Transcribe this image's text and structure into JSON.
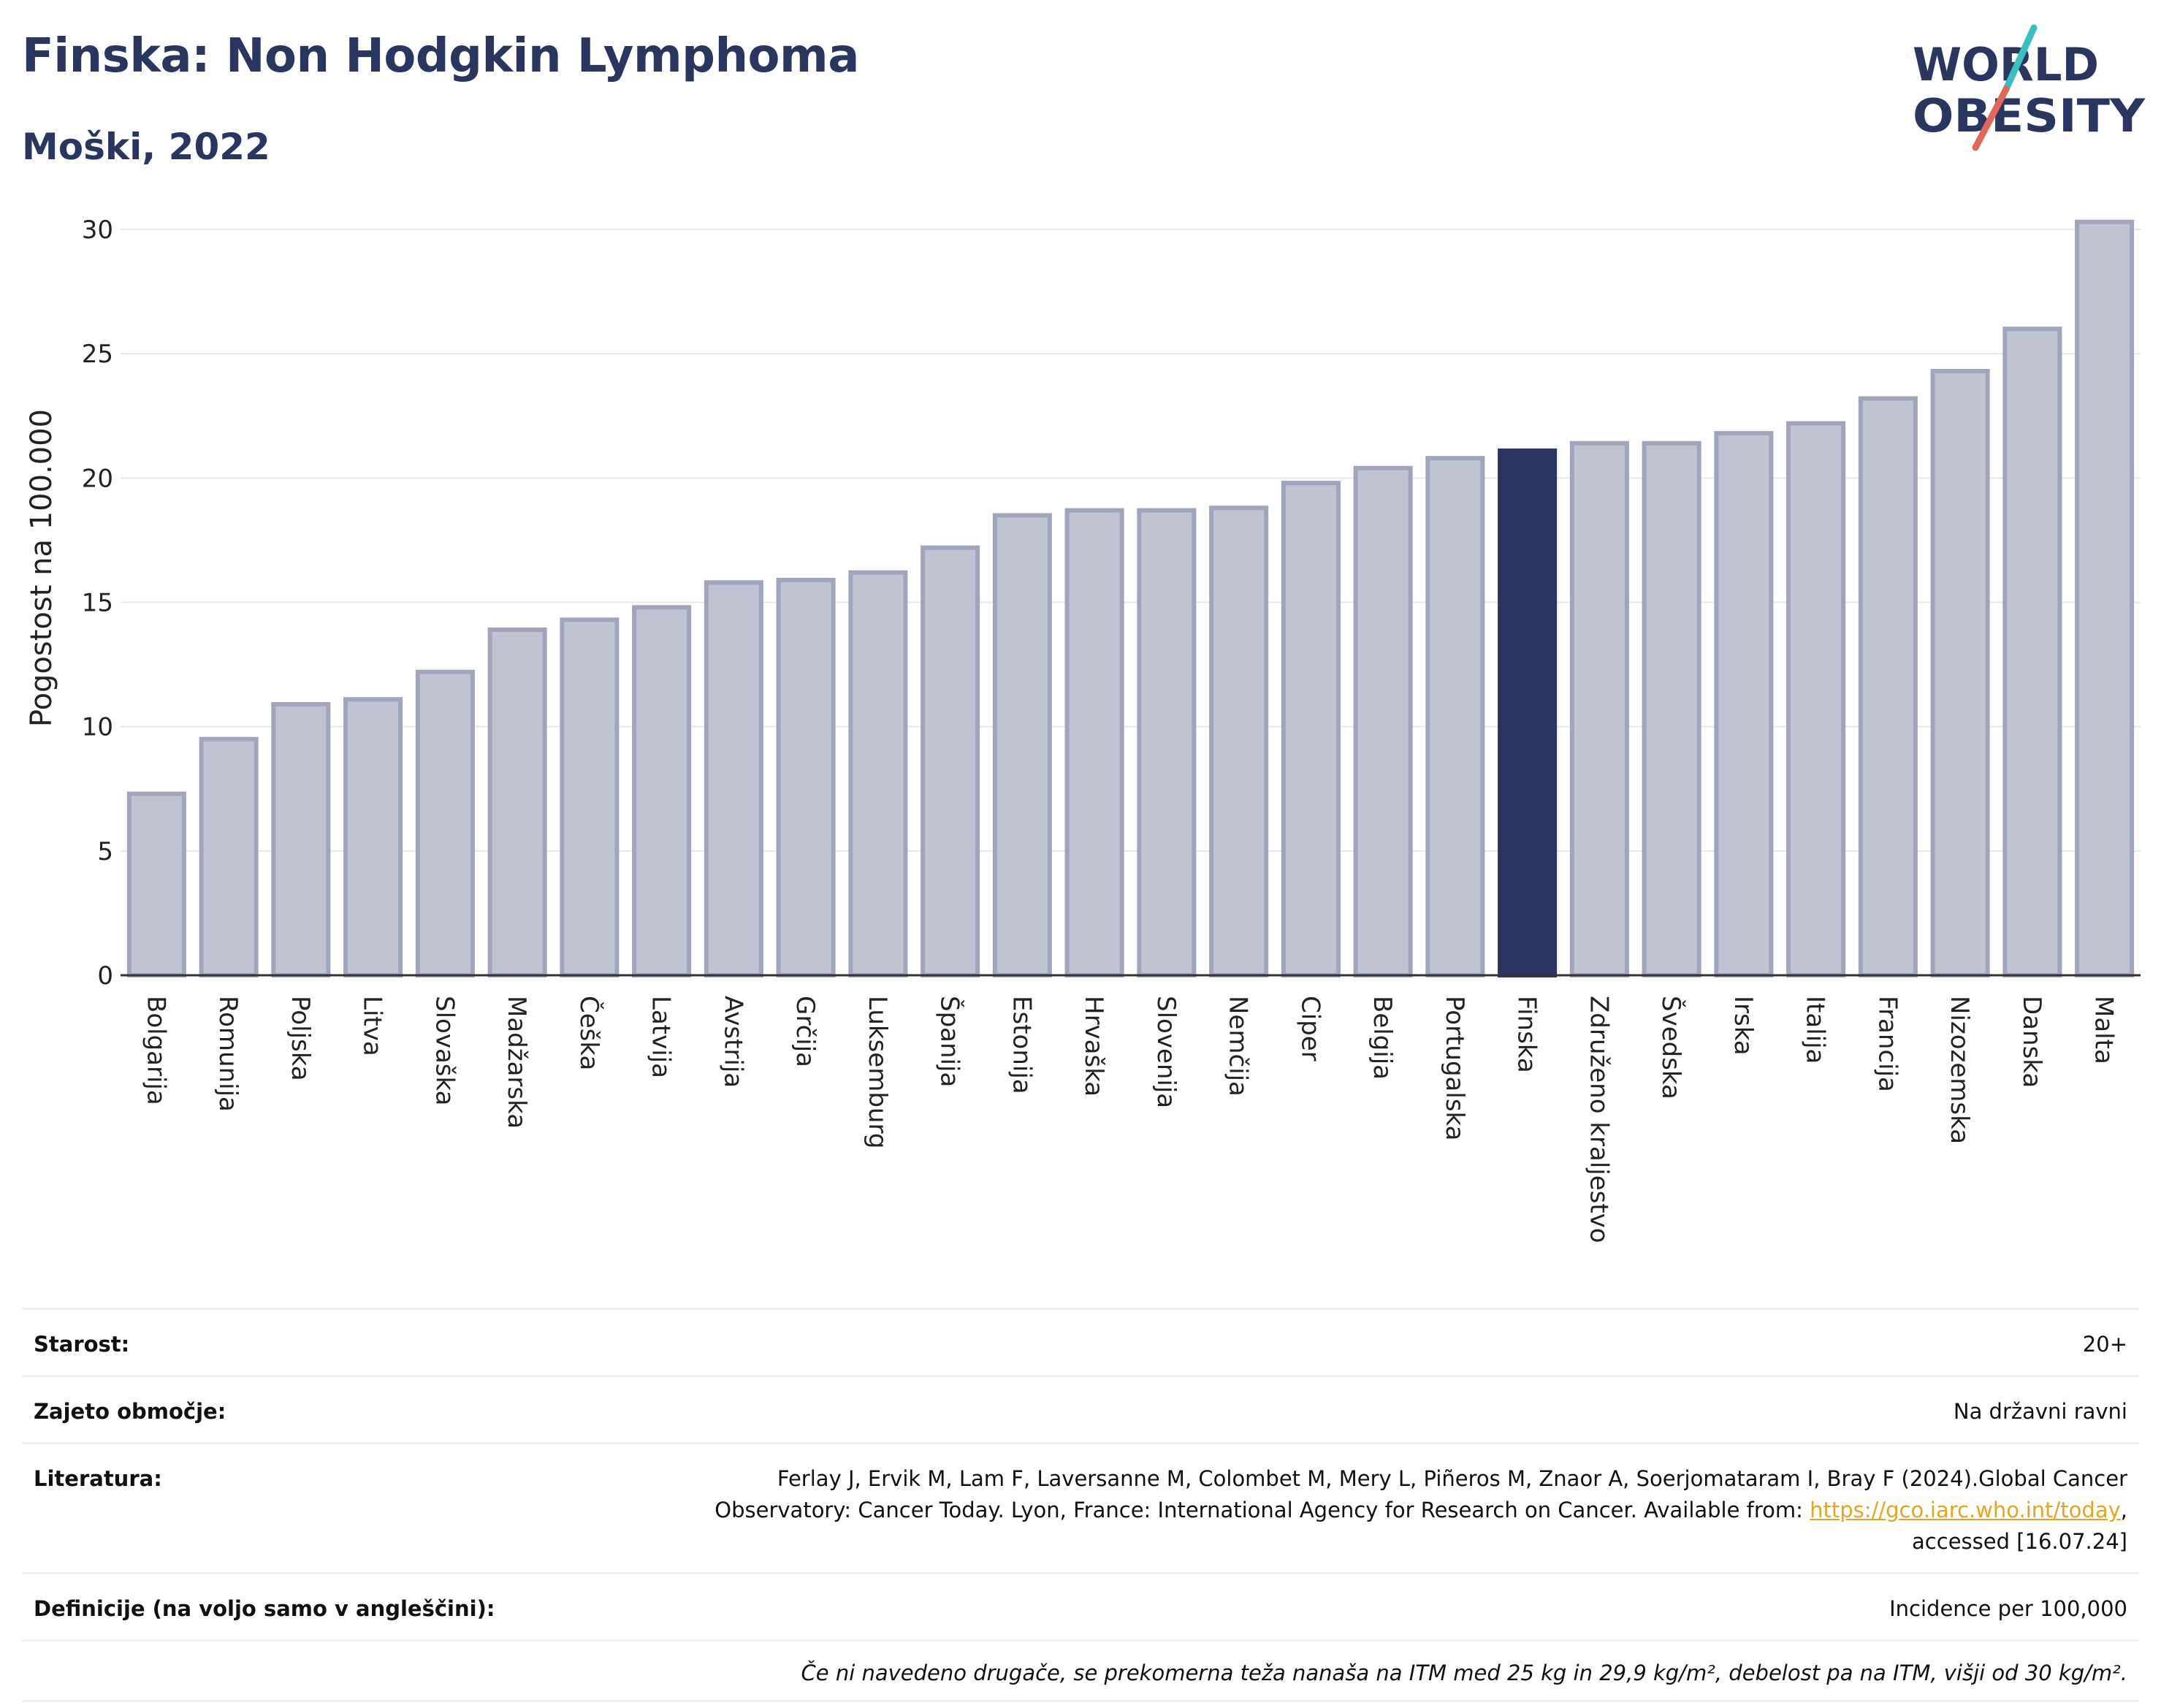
{
  "header": {
    "title": "Finska: Non Hodgkin Lymphoma",
    "subtitle": "Moški, 2022"
  },
  "logo": {
    "line1": "WORLD",
    "line2": "OBESITY",
    "accent_colors": [
      "#3bbfbf",
      "#e0675a"
    ],
    "text_color": "#2a3560"
  },
  "chart_data": {
    "type": "bar",
    "title": "Finska: Non Hodgkin Lymphoma",
    "subtitle": "Moški, 2022",
    "ylabel": "Pogostost na 100.000",
    "xlabel": "",
    "ylim": [
      0,
      31
    ],
    "yticks": [
      0,
      5,
      10,
      15,
      20,
      25,
      30
    ],
    "grid": true,
    "highlight": "Finska",
    "colors": {
      "bar": "#c0c3d0",
      "bar_border": "#a0a5bb",
      "highlight": "#2a3560"
    },
    "categories": [
      "Bolgarija",
      "Romunija",
      "Poljska",
      "Litva",
      "Slovaška",
      "Madžarska",
      "Češka",
      "Latvija",
      "Avstrija",
      "Grčija",
      "Luksemburg",
      "Španija",
      "Estonija",
      "Hrvaška",
      "Slovenija",
      "Nemčija",
      "Ciper",
      "Belgija",
      "Portugalska",
      "Finska",
      "Združeno kraljestvo",
      "Švedska",
      "Irska",
      "Italija",
      "Francija",
      "Nizozemska",
      "Danska",
      "Malta"
    ],
    "values": [
      7.3,
      9.5,
      10.9,
      11.1,
      12.2,
      13.9,
      14.3,
      14.8,
      15.8,
      15.9,
      16.2,
      17.2,
      18.5,
      18.7,
      18.7,
      18.8,
      19.8,
      20.4,
      20.8,
      21.1,
      21.4,
      21.4,
      21.8,
      22.2,
      23.2,
      24.3,
      26.0,
      30.3
    ]
  },
  "info": {
    "rows": [
      {
        "label": "Starost:",
        "value": "20+"
      },
      {
        "label": "Zajeto območje:",
        "value": "Na državni ravni"
      },
      {
        "label": "Literatura:",
        "value_line1": "Ferlay J, Ervik M, Lam F, Laversanne M, Colombet M, Mery L, Piñeros M, Znaor A, Soerjomataram I, Bray F (2024).Global Cancer",
        "value_line2_pre": "Observatory: Cancer Today. Lyon, France: International Agency for Research on Cancer. Available from: ",
        "value_link": "https://gco.iarc.who.int/today",
        "value_line2_post": ",",
        "value_line3": "accessed [16.07.24]"
      },
      {
        "label": "Definicije (na voljo samo v angleščini):",
        "value": "Incidence per 100,000"
      }
    ],
    "note": "Če ni navedeno drugače, se prekomerna teža nanaša na ITM med 25 kg in 29,9 kg/m², debelost pa na ITM, višji od 30 kg/m²."
  }
}
